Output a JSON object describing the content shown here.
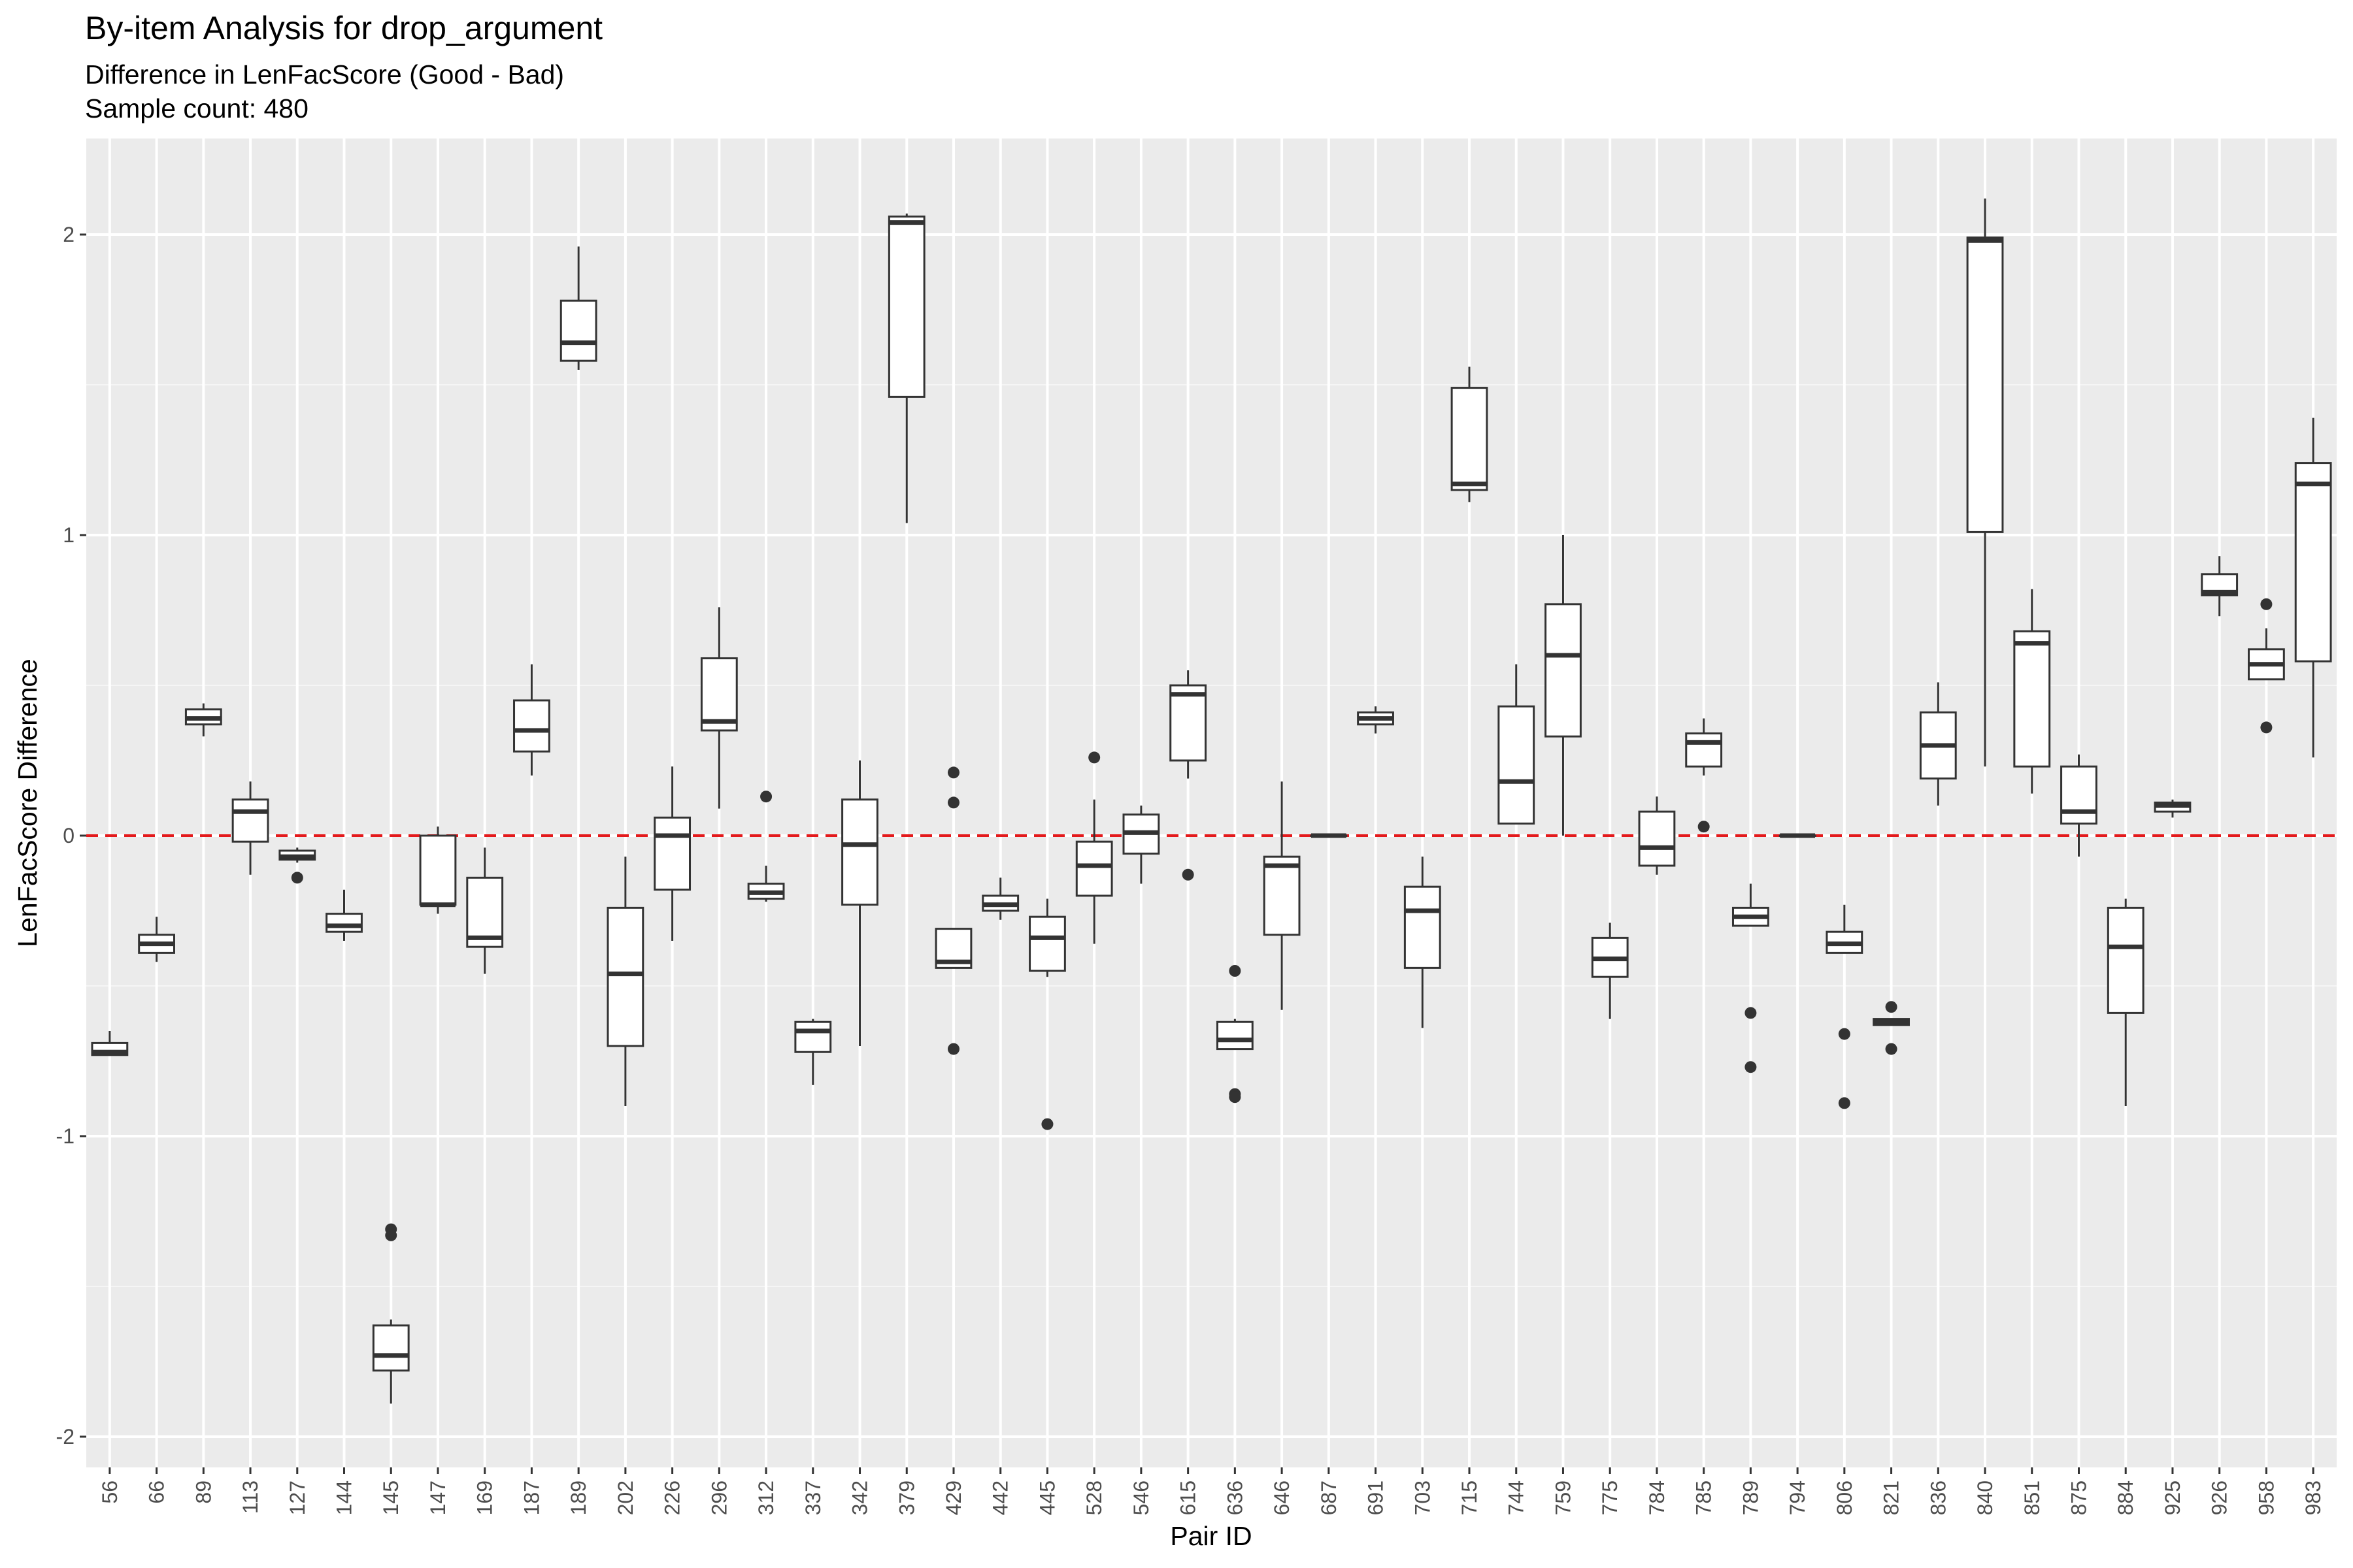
{
  "chart_data": {
    "type": "boxplot",
    "title": "By-item Analysis for drop_argument",
    "subtitle": "Difference in LenFacScore (Good - Bad)",
    "subtitle2": "Sample count: 480",
    "xlabel": "Pair ID",
    "ylabel": "LenFacScore Difference",
    "ylim": [
      -2.1,
      2.33
    ],
    "y_ticks": [
      -2,
      -1,
      0,
      1,
      2
    ],
    "y_tick_labels": [
      "-2",
      "-1",
      "0",
      "1",
      "2"
    ],
    "reference_line": {
      "y": 0,
      "style": "dashed",
      "color": "#e41a1c"
    },
    "grid": true,
    "background": "#ebebeb",
    "categories": [
      "56",
      "66",
      "89",
      "113",
      "127",
      "144",
      "145",
      "147",
      "169",
      "187",
      "189",
      "202",
      "226",
      "296",
      "312",
      "337",
      "342",
      "379",
      "429",
      "442",
      "445",
      "528",
      "546",
      "615",
      "636",
      "646",
      "687",
      "691",
      "703",
      "715",
      "744",
      "759",
      "775",
      "784",
      "785",
      "789",
      "794",
      "806",
      "821",
      "836",
      "840",
      "851",
      "875",
      "884",
      "925",
      "926",
      "958",
      "983"
    ],
    "boxes": [
      {
        "id": "56",
        "wlo": -0.73,
        "q1": -0.73,
        "med": -0.72,
        "q3": -0.69,
        "whi": -0.65,
        "outliers": []
      },
      {
        "id": "66",
        "wlo": -0.42,
        "q1": -0.39,
        "med": -0.36,
        "q3": -0.33,
        "whi": -0.27,
        "outliers": []
      },
      {
        "id": "89",
        "wlo": 0.33,
        "q1": 0.37,
        "med": 0.39,
        "q3": 0.42,
        "whi": 0.44,
        "outliers": []
      },
      {
        "id": "113",
        "wlo": -0.13,
        "q1": -0.02,
        "med": 0.08,
        "q3": 0.12,
        "whi": 0.18,
        "outliers": []
      },
      {
        "id": "127",
        "wlo": -0.09,
        "q1": -0.08,
        "med": -0.07,
        "q3": -0.05,
        "whi": -0.04,
        "outliers": [
          -0.14
        ]
      },
      {
        "id": "144",
        "wlo": -0.35,
        "q1": -0.32,
        "med": -0.3,
        "q3": -0.26,
        "whi": -0.18,
        "outliers": []
      },
      {
        "id": "145",
        "wlo": -1.89,
        "q1": -1.78,
        "med": -1.73,
        "q3": -1.63,
        "whi": -1.61,
        "outliers": [
          -1.31,
          -1.33
        ]
      },
      {
        "id": "147",
        "wlo": -0.26,
        "q1": -0.23,
        "med": -0.23,
        "q3": 0.0,
        "whi": 0.03,
        "outliers": []
      },
      {
        "id": "169",
        "wlo": -0.46,
        "q1": -0.37,
        "med": -0.34,
        "q3": -0.14,
        "whi": -0.04,
        "outliers": []
      },
      {
        "id": "187",
        "wlo": 0.2,
        "q1": 0.28,
        "med": 0.35,
        "q3": 0.45,
        "whi": 0.57,
        "outliers": []
      },
      {
        "id": "189",
        "wlo": 1.55,
        "q1": 1.58,
        "med": 1.64,
        "q3": 1.78,
        "whi": 1.96,
        "outliers": []
      },
      {
        "id": "202",
        "wlo": -0.9,
        "q1": -0.7,
        "med": -0.46,
        "q3": -0.24,
        "whi": -0.07,
        "outliers": []
      },
      {
        "id": "226",
        "wlo": -0.35,
        "q1": -0.18,
        "med": 0.0,
        "q3": 0.06,
        "whi": 0.23,
        "outliers": []
      },
      {
        "id": "296",
        "wlo": 0.09,
        "q1": 0.35,
        "med": 0.38,
        "q3": 0.59,
        "whi": 0.76,
        "outliers": []
      },
      {
        "id": "312",
        "wlo": -0.22,
        "q1": -0.21,
        "med": -0.19,
        "q3": -0.16,
        "whi": -0.1,
        "outliers": [
          0.13
        ]
      },
      {
        "id": "337",
        "wlo": -0.83,
        "q1": -0.72,
        "med": -0.65,
        "q3": -0.62,
        "whi": -0.61,
        "outliers": []
      },
      {
        "id": "342",
        "wlo": -0.7,
        "q1": -0.23,
        "med": -0.03,
        "q3": 0.12,
        "whi": 0.25,
        "outliers": []
      },
      {
        "id": "379",
        "wlo": 1.04,
        "q1": 1.46,
        "med": 2.04,
        "q3": 2.06,
        "whi": 2.07,
        "outliers": []
      },
      {
        "id": "429",
        "wlo": -0.44,
        "q1": -0.44,
        "med": -0.42,
        "q3": -0.31,
        "whi": -0.31,
        "outliers": [
          0.21,
          0.11,
          -0.71
        ]
      },
      {
        "id": "442",
        "wlo": -0.28,
        "q1": -0.25,
        "med": -0.23,
        "q3": -0.2,
        "whi": -0.14,
        "outliers": []
      },
      {
        "id": "445",
        "wlo": -0.47,
        "q1": -0.45,
        "med": -0.34,
        "q3": -0.27,
        "whi": -0.21,
        "outliers": [
          -0.96
        ]
      },
      {
        "id": "528",
        "wlo": -0.36,
        "q1": -0.2,
        "med": -0.1,
        "q3": -0.02,
        "whi": 0.12,
        "outliers": [
          0.26
        ]
      },
      {
        "id": "546",
        "wlo": -0.16,
        "q1": -0.06,
        "med": 0.01,
        "q3": 0.07,
        "whi": 0.1,
        "outliers": []
      },
      {
        "id": "615",
        "wlo": 0.19,
        "q1": 0.25,
        "med": 0.47,
        "q3": 0.5,
        "whi": 0.55,
        "outliers": [
          -0.13
        ]
      },
      {
        "id": "636",
        "wlo": -0.71,
        "q1": -0.71,
        "med": -0.68,
        "q3": -0.62,
        "whi": -0.61,
        "outliers": [
          -0.45,
          -0.86,
          -0.87
        ]
      },
      {
        "id": "646",
        "wlo": -0.58,
        "q1": -0.33,
        "med": -0.1,
        "q3": -0.07,
        "whi": 0.18,
        "outliers": []
      },
      {
        "id": "687",
        "wlo": 0.0,
        "q1": 0.0,
        "med": 0.0,
        "q3": 0.0,
        "whi": 0.0,
        "outliers": []
      },
      {
        "id": "691",
        "wlo": 0.34,
        "q1": 0.37,
        "med": 0.39,
        "q3": 0.41,
        "whi": 0.43,
        "outliers": []
      },
      {
        "id": "703",
        "wlo": -0.64,
        "q1": -0.44,
        "med": -0.25,
        "q3": -0.17,
        "whi": -0.07,
        "outliers": []
      },
      {
        "id": "715",
        "wlo": 1.11,
        "q1": 1.15,
        "med": 1.17,
        "q3": 1.49,
        "whi": 1.56,
        "outliers": []
      },
      {
        "id": "744",
        "wlo": 0.04,
        "q1": 0.04,
        "med": 0.18,
        "q3": 0.43,
        "whi": 0.57,
        "outliers": []
      },
      {
        "id": "759",
        "wlo": 0.0,
        "q1": 0.33,
        "med": 0.6,
        "q3": 0.77,
        "whi": 1.0,
        "outliers": []
      },
      {
        "id": "775",
        "wlo": -0.61,
        "q1": -0.47,
        "med": -0.41,
        "q3": -0.34,
        "whi": -0.29,
        "outliers": []
      },
      {
        "id": "784",
        "wlo": -0.13,
        "q1": -0.1,
        "med": -0.04,
        "q3": 0.08,
        "whi": 0.13,
        "outliers": []
      },
      {
        "id": "785",
        "wlo": 0.2,
        "q1": 0.23,
        "med": 0.31,
        "q3": 0.34,
        "whi": 0.39,
        "outliers": [
          0.03
        ]
      },
      {
        "id": "789",
        "wlo": -0.3,
        "q1": -0.3,
        "med": -0.27,
        "q3": -0.24,
        "whi": -0.16,
        "outliers": [
          -0.59,
          -0.77
        ]
      },
      {
        "id": "794",
        "wlo": 0.0,
        "q1": 0.0,
        "med": 0.0,
        "q3": 0.0,
        "whi": 0.0,
        "outliers": []
      },
      {
        "id": "806",
        "wlo": -0.39,
        "q1": -0.39,
        "med": -0.36,
        "q3": -0.32,
        "whi": -0.23,
        "outliers": [
          -0.66,
          -0.89
        ]
      },
      {
        "id": "821",
        "wlo": -0.63,
        "q1": -0.63,
        "med": -0.62,
        "q3": -0.61,
        "whi": -0.61,
        "outliers": [
          -0.57,
          -0.71
        ]
      },
      {
        "id": "836",
        "wlo": 0.1,
        "q1": 0.19,
        "med": 0.3,
        "q3": 0.41,
        "whi": 0.51,
        "outliers": []
      },
      {
        "id": "840",
        "wlo": 0.23,
        "q1": 1.01,
        "med": 1.98,
        "q3": 1.99,
        "whi": 2.12,
        "outliers": []
      },
      {
        "id": "851",
        "wlo": 0.14,
        "q1": 0.23,
        "med": 0.64,
        "q3": 0.68,
        "whi": 0.82,
        "outliers": []
      },
      {
        "id": "875",
        "wlo": -0.07,
        "q1": 0.04,
        "med": 0.08,
        "q3": 0.23,
        "whi": 0.27,
        "outliers": []
      },
      {
        "id": "884",
        "wlo": -0.9,
        "q1": -0.59,
        "med": -0.37,
        "q3": -0.24,
        "whi": -0.21,
        "outliers": []
      },
      {
        "id": "925",
        "wlo": 0.06,
        "q1": 0.08,
        "med": 0.1,
        "q3": 0.11,
        "whi": 0.12,
        "outliers": []
      },
      {
        "id": "926",
        "wlo": 0.73,
        "q1": 0.8,
        "med": 0.81,
        "q3": 0.87,
        "whi": 0.93,
        "outliers": []
      },
      {
        "id": "958",
        "wlo": 0.52,
        "q1": 0.52,
        "med": 0.57,
        "q3": 0.62,
        "whi": 0.69,
        "outliers": [
          0.77,
          0.36
        ]
      },
      {
        "id": "983",
        "wlo": 0.26,
        "q1": 0.58,
        "med": 1.17,
        "q3": 1.24,
        "whi": 1.39,
        "outliers": []
      }
    ]
  }
}
